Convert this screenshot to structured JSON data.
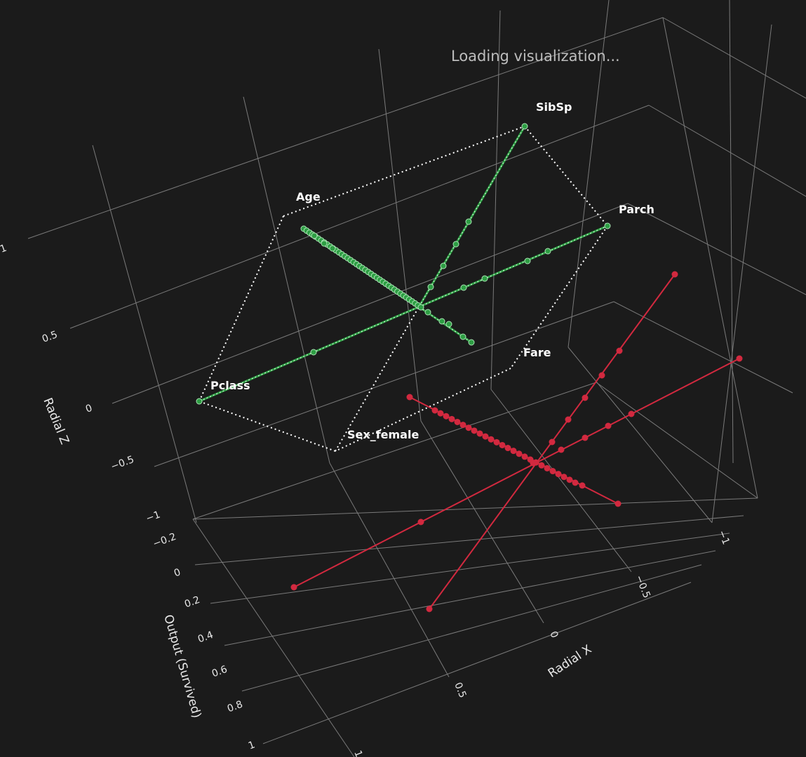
{
  "status": {
    "loading_text": "Loading visualization..."
  },
  "chart_data": {
    "type": "scatter",
    "xlabel": "Radial X",
    "ylabel": "Output (Survived)",
    "zlabel": "Radial Z",
    "x_ticks": [
      "1",
      "0.5",
      "0",
      "−0.5",
      "−1"
    ],
    "y_ticks": [
      "−0.2",
      "0",
      "0.2",
      "0.4",
      "0.6",
      "0.8",
      "1"
    ],
    "z_ticks": [
      "−1",
      "−0.5",
      "0",
      "0.5",
      "1"
    ],
    "features": [
      "SibSp",
      "Age",
      "Parch",
      "Fare",
      "Pclass",
      "Sex_female"
    ],
    "colors": {
      "survived_0": "#2e9e44",
      "survived_1": "#d2293f",
      "outline": "#ffffff",
      "grid": "#7a7a7a",
      "background": "#1b1b1b"
    },
    "series": [
      {
        "output": 0,
        "color": "#2e9e44",
        "axes": [
          "Age–Fare",
          "SibSp–Sex_female",
          "Parch–Pclass"
        ]
      },
      {
        "output": 1,
        "color": "#d2293f",
        "axes": [
          "Age–Fare",
          "SibSp–Sex_female",
          "Parch–Pclass"
        ]
      }
    ],
    "grid": true
  }
}
